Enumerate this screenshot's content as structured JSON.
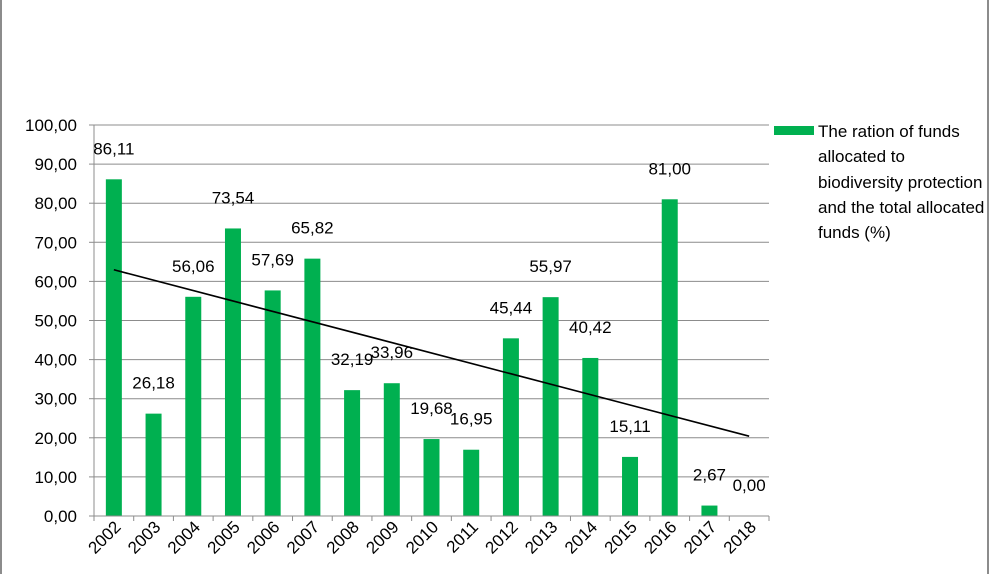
{
  "chart_data": {
    "type": "bar",
    "title": "",
    "xlabel": "",
    "ylabel": "",
    "categories": [
      "2002",
      "2003",
      "2004",
      "2005",
      "2006",
      "2007",
      "2008",
      "2009",
      "2010",
      "2011",
      "2012",
      "2013",
      "2014",
      "2015",
      "2016",
      "2017",
      "2018"
    ],
    "series": [
      {
        "name": "The ration of funds allocated to biodiversity protection and the total allocated funds (%)",
        "values": [
          86.11,
          26.18,
          56.06,
          73.54,
          57.69,
          65.82,
          32.19,
          33.96,
          19.68,
          16.95,
          45.44,
          55.97,
          40.42,
          15.11,
          81.0,
          2.67,
          0.0
        ],
        "labels": [
          "86,11",
          "26,18",
          "56,06",
          "73,54",
          "57,69",
          "65,82",
          "32,19",
          "33,96",
          "19,68",
          "16,95",
          "45,44",
          "55,97",
          "40,42",
          "15,11",
          "81,00",
          "2,67",
          "0,00"
        ],
        "color": "#00b050"
      }
    ],
    "ylim": [
      0,
      100
    ],
    "yticks": [
      "0,00",
      "10,00",
      "20,00",
      "30,00",
      "40,00",
      "50,00",
      "60,00",
      "70,00",
      "80,00",
      "90,00",
      "100,00"
    ],
    "trendline": {
      "type": "linear",
      "color": "#000000"
    },
    "grid": true,
    "legend": "right"
  }
}
